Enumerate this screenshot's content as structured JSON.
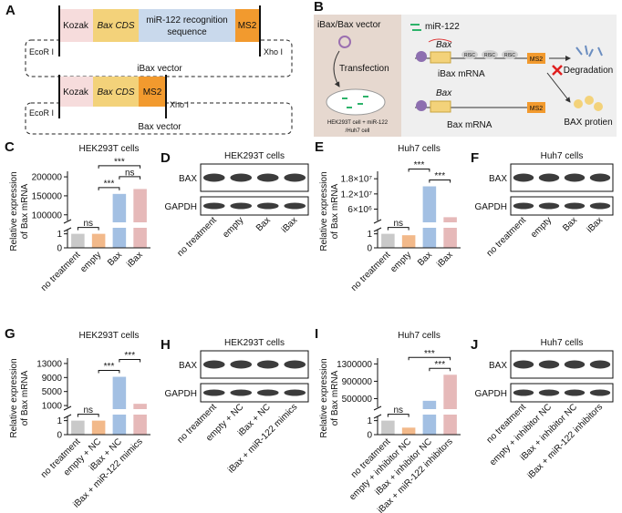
{
  "panels": {
    "A": {
      "label": "A",
      "ibax": {
        "kozak": "Kozak",
        "cds": "Bax CDS",
        "mir": [
          "miR-122 recognition",
          "sequence"
        ],
        "ms2": "MS2",
        "ecor": "EcoR I",
        "xho": "Xho I",
        "name": "iBax vector"
      },
      "bax": {
        "kozak": "Kozak",
        "cds": "Bax CDS",
        "ms2": "MS2",
        "ecor": "EcoR I",
        "xho": "Xho I",
        "name": "Bax vector"
      }
    },
    "B": {
      "label": "B",
      "vector": "iBax/Bax vector",
      "transfection": "Transfection",
      "cell": [
        "HEK293T cell + miR-122",
        "/Huh7 cell"
      ],
      "mir": "miR-122",
      "top": {
        "gene": "Bax",
        "risc": [
          "RISC",
          "RISC",
          "RISC"
        ],
        "ms2": "MS2",
        "name": "iBax mRNA",
        "fate": "Degradation"
      },
      "bottom": {
        "gene": "Bax",
        "ms2": "MS2",
        "name": "Bax mRNA",
        "fate": "BAX protien"
      }
    }
  },
  "blots": [
    {
      "label": "D",
      "title": "HEK293T cells",
      "rows": [
        "BAX",
        "GAPDH"
      ],
      "lanes": [
        "no treatment",
        "empty",
        "Bax",
        "iBax"
      ]
    },
    {
      "label": "F",
      "title": "Huh7 cells",
      "rows": [
        "BAX",
        "GAPDH"
      ],
      "lanes": [
        "no treatment",
        "empty",
        "Bax",
        "iBax"
      ]
    },
    {
      "label": "H",
      "title": "HEK293T cells",
      "rows": [
        "BAX",
        "GAPDH"
      ],
      "lanes": [
        "no treatment",
        "empty + NC",
        "iBax + NC",
        "iBax + miR-122 mimics"
      ]
    },
    {
      "label": "J",
      "title": "Huh7 cells",
      "rows": [
        "BAX",
        "GAPDH"
      ],
      "lanes": [
        "no treatment",
        "empty + inhibitor NC",
        "iBax + inhibitor NC",
        "iBax + miR-122 inhibitors"
      ]
    }
  ],
  "chart_data": [
    {
      "type": "bar",
      "label": "C",
      "title": "HEK293T cells",
      "ylabel": [
        "Relative expression",
        "of Bax mRNA"
      ],
      "categories": [
        "no treatment",
        "empty",
        "Bax",
        "iBax"
      ],
      "values": [
        1,
        1,
        155000,
        168000
      ],
      "colors": [
        "#c9c9c9",
        "#f2b98a",
        "#a3c0e3",
        "#e6b9b9"
      ],
      "segments": [
        {
          "ylim": [
            0,
            1.3
          ],
          "yticks": [
            0,
            1
          ]
        },
        {
          "ylim": [
            85000,
            205000
          ],
          "yticks": [
            100000,
            150000,
            200000
          ]
        }
      ],
      "annotations": [
        {
          "text": "ns",
          "pair": [
            0,
            1
          ]
        },
        {
          "text": "***",
          "pair": [
            1,
            2
          ]
        },
        {
          "text": "ns",
          "pair": [
            2,
            3
          ]
        },
        {
          "text": "***",
          "pair": [
            1,
            3
          ]
        }
      ]
    },
    {
      "type": "bar",
      "label": "E",
      "title": "Huh7 cells",
      "ylabel": [
        "Relative expression",
        "of Bax mRNA"
      ],
      "categories": [
        "no treatment",
        "empty",
        "Bax",
        "iBax"
      ],
      "values": [
        1,
        0.9,
        15000000,
        2800000
      ],
      "colors": [
        "#c9c9c9",
        "#f2b98a",
        "#a3c0e3",
        "#e6b9b9"
      ],
      "segments": [
        {
          "ylim": [
            0,
            1.3
          ],
          "yticks": [
            0,
            1
          ]
        },
        {
          "ylim": [
            1500000,
            19500000
          ],
          "yticks": [
            {
              "value": 6000000,
              "label": "6×10⁶"
            },
            {
              "value": 12000000,
              "label": "1.2×10⁷"
            },
            {
              "value": 18000000,
              "label": "1.8×10⁷"
            }
          ]
        }
      ],
      "annotations": [
        {
          "text": "ns",
          "pair": [
            0,
            1
          ]
        },
        {
          "text": "***",
          "pair": [
            2,
            3
          ]
        },
        {
          "text": "***",
          "pair": [
            1,
            2
          ]
        }
      ]
    },
    {
      "type": "bar",
      "label": "G",
      "title": "HEK293T cells",
      "ylabel": [
        "Relative expression",
        "of Bax mRNA"
      ],
      "categories": [
        "no treatment",
        "empty + NC",
        "iBax + NC",
        "iBax + miR-122 mimics"
      ],
      "values": [
        1,
        1,
        9200,
        1500
      ],
      "colors": [
        "#c9c9c9",
        "#f2b98a",
        "#a3c0e3",
        "#e6b9b9"
      ],
      "segments": [
        {
          "ylim": [
            0,
            1.3
          ],
          "yticks": [
            0,
            1
          ]
        },
        {
          "ylim": [
            500,
            13500
          ],
          "yticks": [
            1000,
            5000,
            9000,
            13000
          ]
        }
      ],
      "annotations": [
        {
          "text": "ns",
          "pair": [
            0,
            1
          ]
        },
        {
          "text": "***",
          "pair": [
            1,
            2
          ]
        },
        {
          "text": "***",
          "pair": [
            2,
            3
          ]
        }
      ]
    },
    {
      "type": "bar",
      "label": "I",
      "title": "Huh7 cells",
      "ylabel": [
        "Relative expression",
        "of Bax mRNA"
      ],
      "categories": [
        "no treatment",
        "empty + inhibitor NC",
        "iBax + inhibitor NC",
        "iBax + miR-122 inhibitors"
      ],
      "values": [
        1,
        0.5,
        450000,
        1050000
      ],
      "colors": [
        "#c9c9c9",
        "#f2b98a",
        "#a3c0e3",
        "#e6b9b9"
      ],
      "segments": [
        {
          "ylim": [
            0,
            1.3
          ],
          "yticks": [
            0,
            1
          ]
        },
        {
          "ylim": [
            300000,
            1350000
          ],
          "yticks": [
            500000,
            900000,
            1300000
          ]
        }
      ],
      "annotations": [
        {
          "text": "ns",
          "pair": [
            0,
            1
          ]
        },
        {
          "text": "***",
          "pair": [
            2,
            3
          ]
        },
        {
          "text": "***",
          "pair": [
            1,
            3
          ]
        }
      ]
    }
  ]
}
